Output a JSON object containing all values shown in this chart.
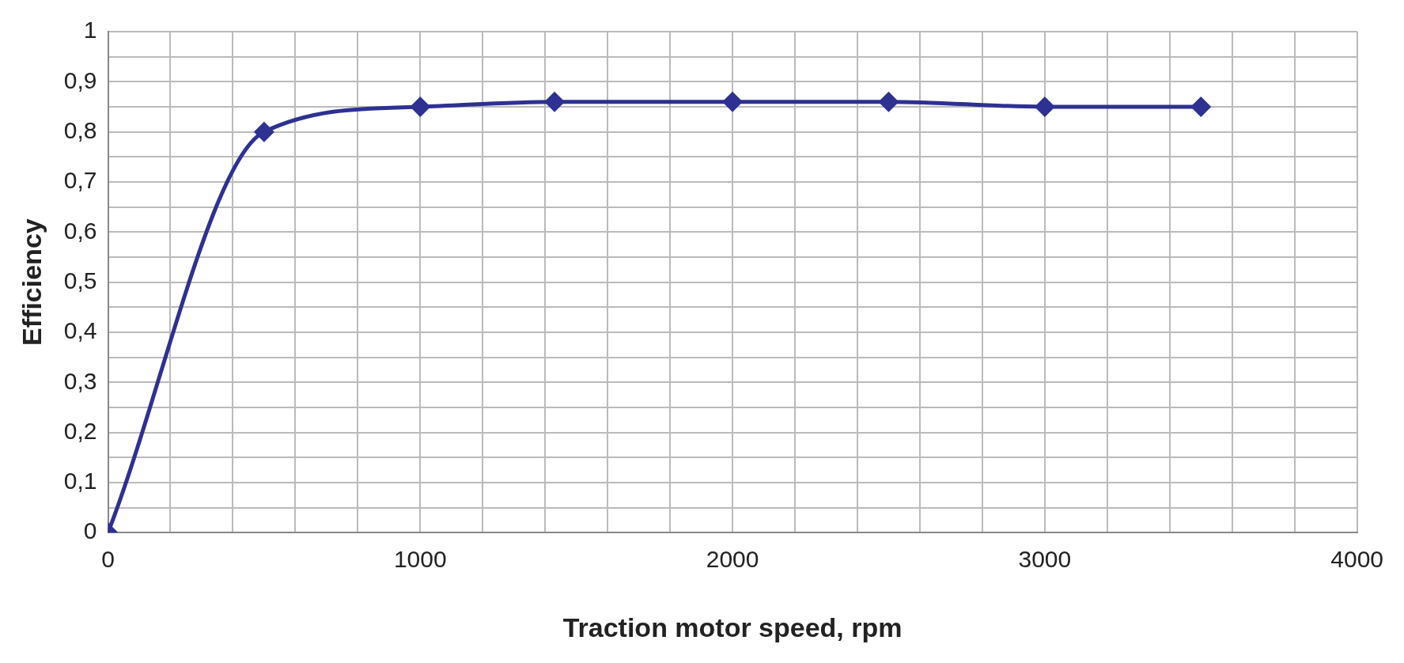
{
  "chart_data": {
    "type": "line",
    "xlabel": "Traction motor speed, rpm",
    "ylabel": "Efficiency",
    "x": [
      0,
      500,
      1000,
      1430,
      2000,
      2500,
      3000,
      3500
    ],
    "series": [
      {
        "color": "#2e3192",
        "values": [
          0,
          0.8,
          0.85,
          0.86,
          0.86,
          0.86,
          0.85,
          0.85
        ]
      }
    ],
    "xlim": [
      0,
      4000
    ],
    "xticks": [
      0,
      {
        "value": 200,
        "label": null
      },
      {
        "value": 400,
        "label": null
      },
      {
        "value": 600,
        "label": null
      },
      {
        "value": 800,
        "label": null
      },
      1000,
      {
        "value": 1200,
        "label": null
      },
      {
        "value": 1400,
        "label": null
      },
      {
        "value": 1600,
        "label": null
      },
      {
        "value": 1800,
        "label": null
      },
      2000,
      {
        "value": 2200,
        "label": null
      },
      {
        "value": 2400,
        "label": null
      },
      {
        "value": 2600,
        "label": null
      },
      {
        "value": 2800,
        "label": null
      },
      3000,
      {
        "value": 3200,
        "label": null
      },
      {
        "value": 3400,
        "label": null
      },
      {
        "value": 3600,
        "label": null
      },
      {
        "value": 3800,
        "label": null
      },
      4000
    ],
    "ylim": [
      0,
      1
    ],
    "yticks": [
      {
        "value": 0,
        "label": "0"
      },
      {
        "value": 0.05,
        "label": null
      },
      {
        "value": 0.1,
        "label": "0,1"
      },
      {
        "value": 0.15,
        "label": null
      },
      {
        "value": 0.2,
        "label": "0,2"
      },
      {
        "value": 0.25,
        "label": null
      },
      {
        "value": 0.3,
        "label": "0,3"
      },
      {
        "value": 0.35,
        "label": null
      },
      {
        "value": 0.4,
        "label": "0,4"
      },
      {
        "value": 0.45,
        "label": null
      },
      {
        "value": 0.5,
        "label": "0,5"
      },
      {
        "value": 0.55,
        "label": null
      },
      {
        "value": 0.6,
        "label": "0,6"
      },
      {
        "value": 0.65,
        "label": null
      },
      {
        "value": 0.7,
        "label": "0,7"
      },
      {
        "value": 0.75,
        "label": null
      },
      {
        "value": 0.8,
        "label": "0,8"
      },
      {
        "value": 0.85,
        "label": null
      },
      {
        "value": 0.9,
        "label": "0,9"
      },
      {
        "value": 0.95,
        "label": null
      },
      {
        "value": 1,
        "label": "1"
      }
    ],
    "grid": true,
    "legend": false,
    "marker": "diamond",
    "line_style": "solid"
  }
}
